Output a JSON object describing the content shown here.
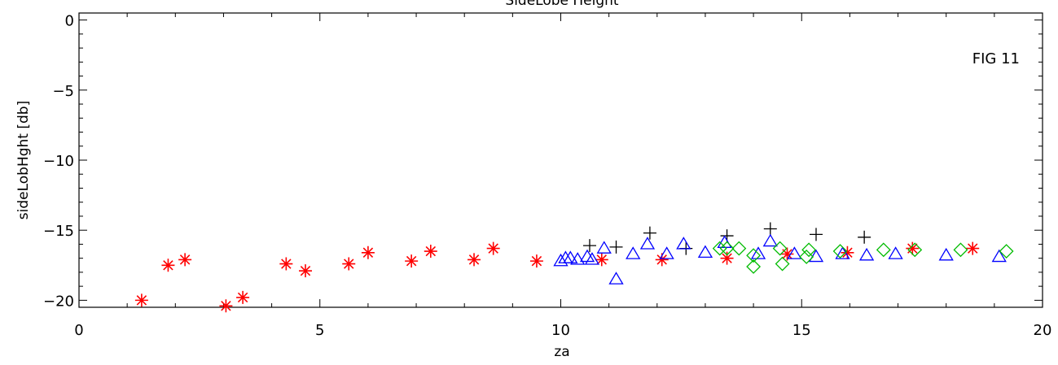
{
  "chart_data": {
    "type": "scatter",
    "title": "SideLobe Height",
    "xlabel": "za",
    "ylabel": "sideLobHght [db]",
    "annotation": "FIG 11",
    "xlim": [
      0,
      20
    ],
    "ylim": [
      -20.5,
      0.5
    ],
    "xticks": [
      0,
      5,
      10,
      15,
      20
    ],
    "yticks": [
      0,
      -5,
      -10,
      -15,
      -20
    ],
    "xtick_labels": [
      "0",
      "5",
      "10",
      "15",
      "20"
    ],
    "ytick_labels": [
      "0",
      "−5",
      "−10",
      "−15",
      "−20"
    ],
    "grid": false,
    "series": [
      {
        "marker": "asterisk",
        "color": "#ff0000",
        "points": [
          [
            1.3,
            -20.0
          ],
          [
            1.85,
            -17.5
          ],
          [
            2.2,
            -17.1
          ],
          [
            3.05,
            -20.4
          ],
          [
            3.4,
            -19.8
          ],
          [
            4.3,
            -17.4
          ],
          [
            4.7,
            -17.9
          ],
          [
            5.6,
            -17.4
          ],
          [
            6.0,
            -16.6
          ],
          [
            6.9,
            -17.2
          ],
          [
            7.3,
            -16.5
          ],
          [
            8.2,
            -17.1
          ],
          [
            8.6,
            -16.3
          ],
          [
            9.5,
            -17.2
          ],
          [
            10.85,
            -17.1
          ],
          [
            12.1,
            -17.1
          ],
          [
            13.45,
            -17.0
          ],
          [
            14.7,
            -16.7
          ],
          [
            15.95,
            -16.6
          ],
          [
            17.3,
            -16.3
          ],
          [
            18.55,
            -16.3
          ]
        ]
      },
      {
        "marker": "plus",
        "color": "#000000",
        "points": [
          [
            10.6,
            -16.1
          ],
          [
            11.15,
            -16.2
          ],
          [
            11.85,
            -15.2
          ],
          [
            12.6,
            -16.3
          ],
          [
            13.45,
            -15.4
          ],
          [
            14.35,
            -14.9
          ],
          [
            15.3,
            -15.3
          ],
          [
            16.3,
            -15.5
          ]
        ]
      },
      {
        "marker": "triangle",
        "color": "#0000ff",
        "points": [
          [
            10.0,
            -17.2
          ],
          [
            10.1,
            -17.0
          ],
          [
            10.2,
            -17.0
          ],
          [
            10.35,
            -17.1
          ],
          [
            10.55,
            -16.9
          ],
          [
            10.65,
            -17.1
          ],
          [
            10.9,
            -16.3
          ],
          [
            11.15,
            -18.5
          ],
          [
            11.5,
            -16.7
          ],
          [
            11.8,
            -16.0
          ],
          [
            12.2,
            -16.7
          ],
          [
            12.55,
            -16.0
          ],
          [
            13.0,
            -16.6
          ],
          [
            13.4,
            -15.9
          ],
          [
            14.1,
            -16.7
          ],
          [
            14.35,
            -15.8
          ],
          [
            14.85,
            -16.7
          ],
          [
            15.3,
            -16.9
          ],
          [
            15.85,
            -16.7
          ],
          [
            16.35,
            -16.8
          ],
          [
            16.95,
            -16.7
          ],
          [
            18.0,
            -16.8
          ],
          [
            19.1,
            -16.9
          ]
        ]
      },
      {
        "marker": "diamond",
        "color": "#00bb00",
        "points": [
          [
            13.3,
            -16.3
          ],
          [
            13.45,
            -16.3
          ],
          [
            13.7,
            -16.3
          ],
          [
            14.0,
            -16.8
          ],
          [
            14.0,
            -17.6
          ],
          [
            14.55,
            -16.3
          ],
          [
            14.6,
            -17.4
          ],
          [
            15.1,
            -16.9
          ],
          [
            15.15,
            -16.4
          ],
          [
            15.8,
            -16.5
          ],
          [
            16.7,
            -16.4
          ],
          [
            17.35,
            -16.4
          ],
          [
            18.3,
            -16.4
          ],
          [
            19.25,
            -16.5
          ]
        ]
      }
    ]
  }
}
